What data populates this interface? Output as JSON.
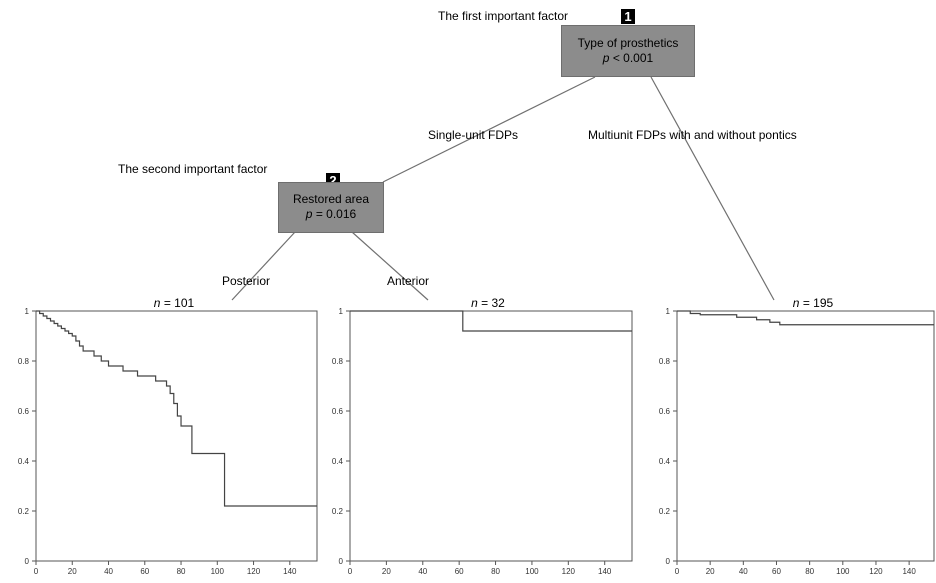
{
  "tree": {
    "factor1_label": "The first important factor",
    "factor2_label": "The second important factor",
    "node1": {
      "badge": "1",
      "title": "Type of prosthetics",
      "p_label": "p",
      "p_value": " < 0.001"
    },
    "node2": {
      "badge": "2",
      "title": "Restored area",
      "p_label": "p",
      "p_value": " = 0.016"
    },
    "edges": {
      "single_unit": "Single-unit FDPs",
      "multi_unit": "Multiunit FDPs with and without pontics",
      "posterior": "Posterior",
      "anterior": "Anterior"
    }
  },
  "chart_data": [
    {
      "type": "line",
      "n_label": "n",
      "n_value": " = 101",
      "xlim": [
        0,
        155
      ],
      "ylim": [
        0,
        1
      ],
      "x_ticks": [
        0,
        20,
        40,
        60,
        80,
        100,
        120,
        140
      ],
      "y_ticks": [
        0,
        0.2,
        0.4,
        0.6,
        0.8,
        1
      ],
      "y_tick_labels": [
        "0",
        "0.2",
        "0.4",
        "0.6",
        "0.8",
        "1"
      ],
      "step_points": [
        [
          0,
          1
        ],
        [
          2,
          0.99
        ],
        [
          4,
          0.98
        ],
        [
          6,
          0.97
        ],
        [
          8,
          0.96
        ],
        [
          10,
          0.95
        ],
        [
          12,
          0.94
        ],
        [
          14,
          0.93
        ],
        [
          16,
          0.92
        ],
        [
          18,
          0.91
        ],
        [
          20,
          0.9
        ],
        [
          22,
          0.88
        ],
        [
          24,
          0.86
        ],
        [
          26,
          0.84
        ],
        [
          32,
          0.82
        ],
        [
          36,
          0.8
        ],
        [
          40,
          0.78
        ],
        [
          48,
          0.76
        ],
        [
          56,
          0.74
        ],
        [
          66,
          0.72
        ],
        [
          72,
          0.7
        ],
        [
          74,
          0.67
        ],
        [
          76,
          0.63
        ],
        [
          78,
          0.58
        ],
        [
          80,
          0.54
        ],
        [
          86,
          0.43
        ],
        [
          104,
          0.22
        ],
        [
          155,
          0.22
        ]
      ]
    },
    {
      "type": "line",
      "n_label": "n",
      "n_value": " = 32",
      "xlim": [
        0,
        155
      ],
      "ylim": [
        0,
        1
      ],
      "x_ticks": [
        0,
        20,
        40,
        60,
        80,
        100,
        120,
        140
      ],
      "y_ticks": [
        0,
        0.2,
        0.4,
        0.6,
        0.8,
        1
      ],
      "y_tick_labels": [
        "0",
        "0.2",
        "0.4",
        "0.6",
        "0.8",
        "1"
      ],
      "step_points": [
        [
          0,
          1
        ],
        [
          62,
          0.92
        ],
        [
          155,
          0.92
        ]
      ]
    },
    {
      "type": "line",
      "n_label": "n",
      "n_value": " = 195",
      "xlim": [
        0,
        155
      ],
      "ylim": [
        0,
        1
      ],
      "x_ticks": [
        0,
        20,
        40,
        60,
        80,
        100,
        120,
        140
      ],
      "y_ticks": [
        0,
        0.2,
        0.4,
        0.6,
        0.8,
        1
      ],
      "y_tick_labels": [
        "0",
        "0.2",
        "0.4",
        "0.6",
        "0.8",
        "1"
      ],
      "step_points": [
        [
          0,
          1
        ],
        [
          8,
          0.99
        ],
        [
          14,
          0.985
        ],
        [
          36,
          0.975
        ],
        [
          48,
          0.965
        ],
        [
          56,
          0.955
        ],
        [
          62,
          0.945
        ],
        [
          155,
          0.945
        ]
      ]
    }
  ]
}
